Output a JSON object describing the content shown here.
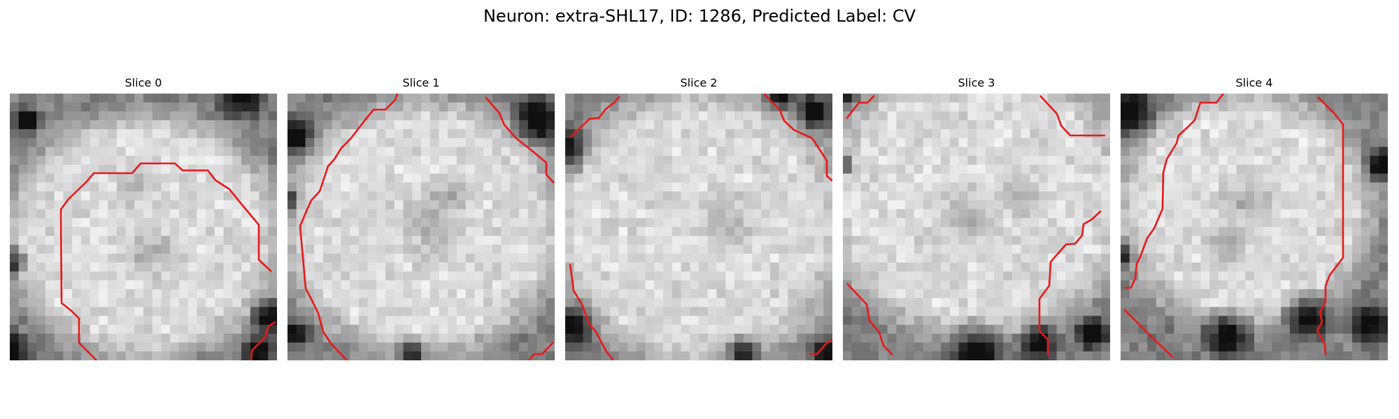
{
  "figure": {
    "title": "Neuron: extra-SHL17, ID: 1286, Predicted Label: CV"
  },
  "slices": [
    {
      "label": "Slice 0"
    },
    {
      "label": "Slice 1"
    },
    {
      "label": "Slice 2"
    },
    {
      "label": "Slice 3"
    },
    {
      "label": "Slice 4"
    }
  ],
  "colors": {
    "contour": "#e8191a",
    "background": "#ffffff"
  }
}
